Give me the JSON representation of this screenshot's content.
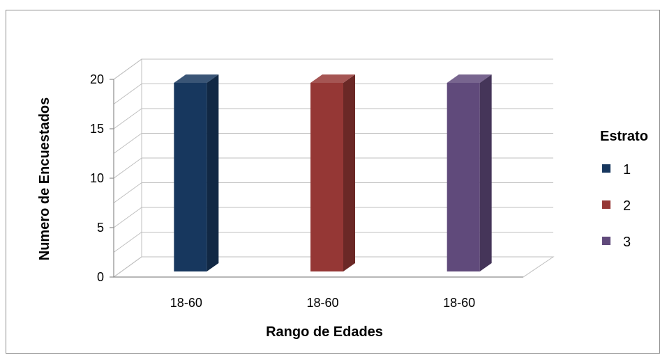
{
  "chart_data": {
    "type": "bar",
    "categories": [
      "18-60",
      "18-60",
      "18-60"
    ],
    "series": [
      {
        "name": "1",
        "values": [
          20,
          null,
          null
        ],
        "color": "#17375e"
      },
      {
        "name": "2",
        "values": [
          null,
          20,
          null
        ],
        "color": "#953735"
      },
      {
        "name": "3",
        "values": [
          null,
          null,
          20
        ],
        "color": "#604a7b"
      }
    ],
    "values": [
      20,
      20,
      20
    ],
    "colors": [
      "#17375e",
      "#953735",
      "#604a7b"
    ],
    "yticks": [
      0,
      5,
      10,
      15,
      20
    ],
    "ylim": [
      0,
      20
    ],
    "xlabel": "Rango de Edades",
    "ylabel": "Numero de Encuestados",
    "legend_title": "Estrato",
    "legend_labels": [
      "1",
      "2",
      "3"
    ],
    "legend_position": "right",
    "grid": true,
    "three_d": true
  }
}
